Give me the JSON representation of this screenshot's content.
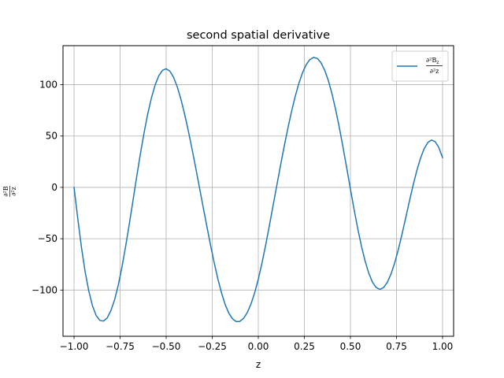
{
  "chart_data": {
    "type": "line",
    "title": "second spatial derivative",
    "xlabel": "z",
    "ylabel": {
      "numerator": "∂²B",
      "denominator": "∂²z"
    },
    "xlim": [
      -1.06,
      1.06
    ],
    "ylim": [
      -145,
      138
    ],
    "xticks": [
      -1.0,
      -0.75,
      -0.5,
      -0.25,
      0.0,
      0.25,
      0.5,
      0.75,
      1.0
    ],
    "xtick_labels": [
      "−1.00",
      "−0.75",
      "−0.50",
      "−0.25",
      "0.00",
      "0.25",
      "0.50",
      "0.75",
      "1.00"
    ],
    "yticks": [
      -100,
      -50,
      0,
      50,
      100
    ],
    "ytick_labels": [
      "−100",
      "−50",
      "0",
      "50",
      "100"
    ],
    "grid": true,
    "legend": {
      "placement": "top-right",
      "entries": [
        {
          "numerator": "∂²B",
          "sub": "z",
          "denominator": "∂²z"
        }
      ]
    },
    "series": [
      {
        "color": "#1f77b4",
        "x": [
          -1.0,
          -0.98,
          -0.96,
          -0.94,
          -0.92,
          -0.9,
          -0.88,
          -0.86,
          -0.84,
          -0.82,
          -0.8,
          -0.78,
          -0.76,
          -0.74,
          -0.72,
          -0.7,
          -0.68,
          -0.66,
          -0.64,
          -0.62,
          -0.6,
          -0.58,
          -0.56,
          -0.54,
          -0.52,
          -0.5,
          -0.48,
          -0.46,
          -0.44,
          -0.42,
          -0.4,
          -0.38,
          -0.36,
          -0.34,
          -0.32,
          -0.3,
          -0.28,
          -0.26,
          -0.24,
          -0.22,
          -0.2,
          -0.18,
          -0.16,
          -0.14,
          -0.12,
          -0.1,
          -0.08,
          -0.06,
          -0.04,
          -0.02,
          0.0,
          0.02,
          0.04,
          0.06,
          0.08,
          0.1,
          0.12,
          0.14,
          0.16,
          0.18,
          0.2,
          0.22,
          0.24,
          0.26,
          0.28,
          0.3,
          0.32,
          0.34,
          0.36,
          0.38,
          0.4,
          0.42,
          0.44,
          0.46,
          0.48,
          0.5,
          0.52,
          0.54,
          0.56,
          0.58,
          0.6,
          0.62,
          0.64,
          0.66,
          0.68,
          0.7,
          0.72,
          0.74,
          0.76,
          0.78,
          0.8,
          0.82,
          0.84,
          0.86,
          0.88,
          0.9,
          0.92,
          0.94,
          0.96,
          0.98,
          1.0
        ],
        "values": [
          0.0,
          -30.1,
          -58.2,
          -82.1,
          -100.9,
          -115.4,
          -124.8,
          -129.5,
          -130.2,
          -127.1,
          -120.0,
          -109.5,
          -95.2,
          -77.5,
          -57.4,
          -35.5,
          -12.6,
          10.4,
          32.6,
          53.2,
          71.6,
          87.2,
          99.7,
          108.7,
          114.0,
          115.5,
          113.2,
          107.2,
          98.0,
          85.8,
          71.4,
          55.2,
          37.7,
          19.3,
          0.4,
          -18.5,
          -37.2,
          -55.5,
          -72.9,
          -88.8,
          -102.6,
          -114.0,
          -122.5,
          -128.0,
          -130.7,
          -130.5,
          -127.6,
          -122.0,
          -113.7,
          -102.8,
          -89.4,
          -73.7,
          -56.2,
          -37.4,
          -17.9,
          1.6,
          20.8,
          39.4,
          57.1,
          73.6,
          88.4,
          101.2,
          111.6,
          119.5,
          124.5,
          126.6,
          125.6,
          121.5,
          114.3,
          104.1,
          91.1,
          75.6,
          58.1,
          38.9,
          18.8,
          -1.6,
          -21.6,
          -40.4,
          -57.4,
          -72.0,
          -83.8,
          -92.4,
          -97.6,
          -99.3,
          -97.6,
          -92.6,
          -84.5,
          -73.7,
          -60.5,
          -45.6,
          -29.7,
          -13.6,
          1.9,
          16.1,
          28.2,
          37.6,
          43.7,
          46.1,
          44.5,
          38.8,
          29.0
        ]
      }
    ]
  }
}
